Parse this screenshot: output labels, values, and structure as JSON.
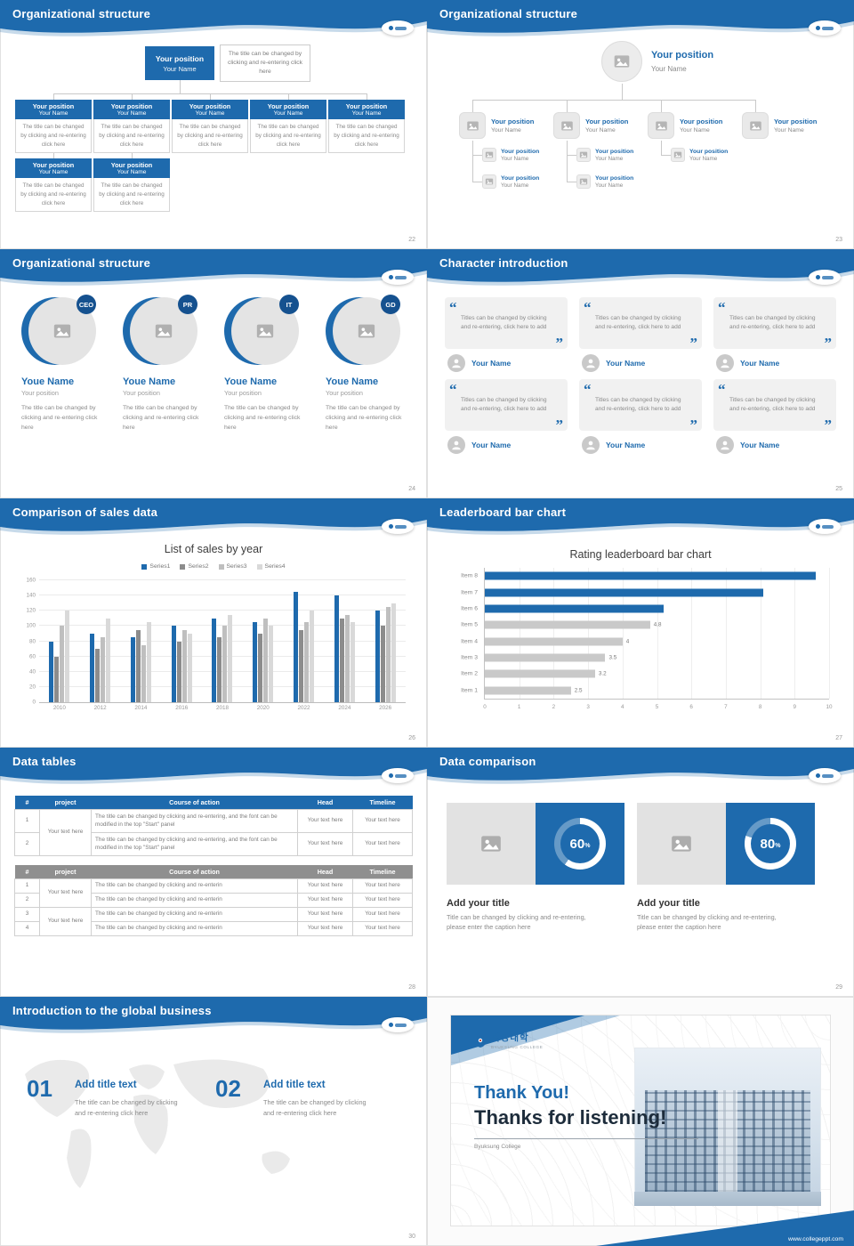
{
  "theme": {
    "accent": "#1e6aad",
    "accent_dark": "#15518f",
    "table2_header": "#8f8f8f",
    "gray_bar": "#c9c9c9",
    "series_colors": [
      "#1e6aad",
      "#8c8c8c",
      "#bfbfbf",
      "#d9d9d9"
    ]
  },
  "chart_data": [
    {
      "type": "bar",
      "title": "List of sales by year",
      "categories": [
        "2010",
        "2012",
        "2014",
        "2016",
        "2018",
        "2020",
        "2022",
        "2024",
        "2026"
      ],
      "series": [
        {
          "name": "Series1",
          "values": [
            80,
            90,
            85,
            100,
            110,
            105,
            145,
            140,
            120
          ]
        },
        {
          "name": "Series2",
          "values": [
            60,
            70,
            95,
            80,
            85,
            90,
            95,
            110,
            100
          ]
        },
        {
          "name": "Series3",
          "values": [
            100,
            85,
            75,
            95,
            100,
            110,
            105,
            115,
            125
          ]
        },
        {
          "name": "Series4",
          "values": [
            120,
            110,
            105,
            90,
            115,
            100,
            120,
            105,
            130
          ]
        }
      ],
      "ylim": [
        0,
        160
      ],
      "ytick_step": 20,
      "grid": true,
      "legend_position": "top"
    },
    {
      "type": "bar",
      "orientation": "horizontal",
      "title": "Rating leaderboard bar chart",
      "categories": [
        "Item 1",
        "Item 2",
        "Item 3",
        "Item 4",
        "Item 5",
        "Item 6",
        "Item 7",
        "Item 8"
      ],
      "values": [
        2.5,
        3.2,
        3.5,
        4,
        4.8,
        5.2,
        8.1,
        9.6
      ],
      "labels": [
        "2.5",
        "3.2",
        "3.5",
        "4",
        "4.8",
        "",
        "",
        ""
      ],
      "bar_colors": [
        "#c9c9c9",
        "#c9c9c9",
        "#c9c9c9",
        "#c9c9c9",
        "#c9c9c9",
        "#1e6aad",
        "#1e6aad",
        "#1e6aad"
      ],
      "xlim": [
        0,
        10
      ],
      "xtick_step": 1,
      "grid": true
    }
  ],
  "slide22": {
    "title": "Organizational structure",
    "page": "22",
    "root": {
      "position": "Your position",
      "name": "Your Name"
    },
    "note": "The title can be changed by clicking and re-entering click here",
    "row1": [
      {
        "position": "Your position",
        "name": "Your Name",
        "body": "The title can be changed by clicking and re-entering click here"
      },
      {
        "position": "Your position",
        "name": "Your Name",
        "body": "The title can be changed by clicking and re-entering click here"
      },
      {
        "position": "Your position",
        "name": "Your Name",
        "body": "The title can be changed by clicking and re-entering click here"
      },
      {
        "position": "Your position",
        "name": "Your Name",
        "body": "The title can be changed by clicking and re-entering click here"
      },
      {
        "position": "Your position",
        "name": "Your Name",
        "body": "The title can be changed by clicking and re-entering click here"
      }
    ],
    "row2": [
      {
        "position": "Your position",
        "name": "Your Name",
        "body": "The title can be changed by clicking and re-entering click here"
      },
      {
        "position": "Your position",
        "name": "Your Name",
        "body": "The title can be changed by clicking and re-entering click here"
      }
    ]
  },
  "slide23": {
    "title": "Organizational structure",
    "page": "23",
    "root": {
      "position": "Your position",
      "name": "Your Name"
    },
    "level2": [
      {
        "position": "Your position",
        "name": "Your Name"
      },
      {
        "position": "Your position",
        "name": "Your Name"
      },
      {
        "position": "Your position",
        "name": "Your Name"
      },
      {
        "position": "Your position",
        "name": "Your Name"
      }
    ],
    "level3": [
      {
        "items": [
          {
            "position": "Your position",
            "name": "Your Name"
          },
          {
            "position": "Your position",
            "name": "Your Name"
          }
        ]
      },
      {
        "items": [
          {
            "position": "Your position",
            "name": "Your Name"
          },
          {
            "position": "Your position",
            "name": "Your Name"
          }
        ]
      },
      {
        "items": [
          {
            "position": "Your position",
            "name": "Your Name"
          }
        ]
      }
    ]
  },
  "slide24": {
    "title": "Organizational structure",
    "page": "24",
    "members": [
      {
        "badge": "CEO",
        "name": "Youe Name",
        "position": "Your position",
        "body": "The title can be changed by clicking and re-entering click here"
      },
      {
        "badge": "PR",
        "name": "Youe Name",
        "position": "Your position",
        "body": "The title can be changed by clicking and re-entering click here"
      },
      {
        "badge": "IT",
        "name": "Youe Name",
        "position": "Your position",
        "body": "The title can be changed by clicking and re-entering click here"
      },
      {
        "badge": "GD",
        "name": "Youe Name",
        "position": "Your position",
        "body": "The title can be changed by clicking and re-entering click here"
      }
    ]
  },
  "slide25": {
    "title": "Character introduction",
    "page": "25",
    "cards": [
      {
        "quote": "Titles can be changed by clicking and re-entering, click here to add",
        "name": "Your Name"
      },
      {
        "quote": "Titles can be changed by clicking and re-entering, click here to add",
        "name": "Your Name"
      },
      {
        "quote": "Titles can be changed by clicking and re-entering, click here to add",
        "name": "Your Name"
      },
      {
        "quote": "Titles can be changed by clicking and re-entering, click here to add",
        "name": "Your Name"
      },
      {
        "quote": "Titles can be changed by clicking and re-entering, click here to add",
        "name": "Your Name"
      },
      {
        "quote": "Titles can be changed by clicking and re-entering, click here to add",
        "name": "Your Name"
      }
    ]
  },
  "slide26": {
    "title": "Comparison of sales data",
    "page": "26"
  },
  "slide27": {
    "title": "Leaderboard bar chart",
    "page": "27"
  },
  "slide28": {
    "title": "Data tables",
    "page": "28",
    "table1": {
      "headers": [
        "#",
        "project",
        "Course of action",
        "Head",
        "Timeline"
      ],
      "project": "Your text here",
      "rows": [
        {
          "num": "1",
          "course": "The title can be changed by clicking and re-entering, and the font can be modified in the top \"Start\" panel",
          "head": "Your text here",
          "timeline": "Your text here"
        },
        {
          "num": "2",
          "course": "The title can be changed by clicking and re-entering, and the font can be modified in the top \"Start\" panel",
          "head": "Your text here",
          "timeline": "Your text here"
        }
      ]
    },
    "table2": {
      "headers": [
        "#",
        "project",
        "Course of action",
        "Head",
        "Timeline"
      ],
      "groups": [
        {
          "project": "Your text here",
          "rows": [
            {
              "num": "1",
              "course": "The title can be changed by clicking and re-enterin",
              "head": "Your text here",
              "timeline": "Your text here"
            },
            {
              "num": "2",
              "course": "The title can be changed by clicking and re-enterin",
              "head": "Your text here",
              "timeline": "Your text here"
            }
          ]
        },
        {
          "project": "Your text here",
          "rows": [
            {
              "num": "3",
              "course": "The title can be changed by clicking and re-enterin",
              "head": "Your text here",
              "timeline": "Your text here"
            },
            {
              "num": "4",
              "course": "The title can be changed by clicking and re-enterin",
              "head": "Your text here",
              "timeline": "Your text here"
            }
          ]
        }
      ]
    }
  },
  "slide29": {
    "title": "Data comparison",
    "page": "29",
    "panels": [
      {
        "percent": 60,
        "value": "60",
        "unit": "%",
        "title": "Add your title",
        "caption": "Title can be changed by clicking and re-entering, please enter the caption here"
      },
      {
        "percent": 80,
        "value": "80",
        "unit": "%",
        "title": "Add your title",
        "caption": "Title can be changed by clicking and re-entering, please enter the caption here"
      }
    ]
  },
  "slide30": {
    "title": "Introduction to the global business",
    "page": "30",
    "items": [
      {
        "num": "01",
        "title": "Add title text",
        "body": "The title can be changed by clicking and re-entering click here"
      },
      {
        "num": "02",
        "title": "Add title text",
        "body": "The title can be changed by clicking and re-entering click here"
      }
    ]
  },
  "thankyou": {
    "logo_text": "벽성대학",
    "logo_sub": "BYUKSUNG COLLEGE",
    "title_line1": "Thank You!",
    "title_line2": "Thanks for listening!",
    "subtitle": "Byuksung College",
    "footer": "www.collegeppt.com"
  }
}
